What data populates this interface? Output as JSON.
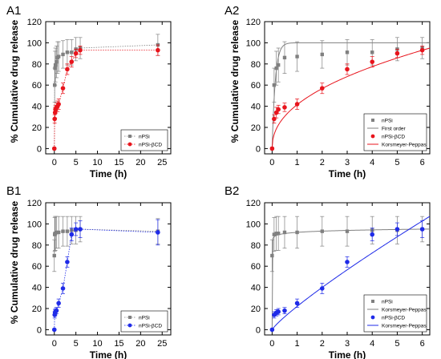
{
  "colors": {
    "gray": "#808080",
    "red": "#e8141c",
    "blue": "#1f2be8",
    "axis": "#000000"
  },
  "chart_data": [
    {
      "id": "A1",
      "label": "A1",
      "type": "scatter",
      "xlabel": "Time (h)",
      "ylabel": "% Cumulative drug release",
      "xlim": [
        -2,
        27
      ],
      "ylim": [
        -5,
        120
      ],
      "xticks": [
        0,
        5,
        10,
        15,
        20,
        25
      ],
      "yticks": [
        0,
        20,
        40,
        60,
        80,
        100,
        120
      ],
      "legend": {
        "placement": "bottom-right",
        "entries": [
          "nPSi",
          "nPSi-βCD"
        ]
      },
      "series": [
        {
          "name": "nPSi",
          "color": "gray",
          "marker": "square",
          "line": "dotted",
          "x": [
            0,
            0.08,
            0.17,
            0.25,
            0.5,
            0.75,
            1,
            2,
            3,
            4,
            5,
            6,
            24
          ],
          "y": [
            0,
            60,
            76,
            79,
            82,
            86,
            87,
            89,
            91,
            91,
            94,
            95,
            98
          ],
          "err": [
            0,
            16,
            16,
            16,
            15,
            15,
            14,
            13,
            12,
            12,
            11,
            10,
            10
          ]
        },
        {
          "name": "nPSi-βCD",
          "color": "red",
          "marker": "circle",
          "line": "dotted",
          "x": [
            0,
            0.08,
            0.17,
            0.25,
            0.5,
            0.75,
            1,
            2,
            3,
            4,
            5,
            6,
            24
          ],
          "y": [
            0,
            28,
            34,
            37,
            39,
            40,
            42,
            57,
            75,
            82,
            90,
            93,
            93
          ],
          "err": [
            0,
            4,
            5,
            4,
            4,
            5,
            5,
            5,
            5,
            5,
            4,
            4,
            5
          ]
        }
      ]
    },
    {
      "id": "A2",
      "label": "A2",
      "type": "scatter",
      "xlabel": "Time (h)",
      "ylabel": "% Cumulative drug release",
      "xlim": [
        -0.3,
        6.3
      ],
      "ylim": [
        -5,
        120
      ],
      "xticks": [
        0,
        1,
        2,
        3,
        4,
        5,
        6
      ],
      "yticks": [
        0,
        20,
        40,
        60,
        80,
        100,
        120
      ],
      "legend": {
        "placement": "bottom-right",
        "entries": [
          "nPSi",
          "First order",
          "nPSi-βCD",
          "Korsmeyer-Peppas"
        ]
      },
      "series": [
        {
          "name": "nPSi",
          "color": "gray",
          "marker": "square",
          "line": "none",
          "x": [
            0,
            0.08,
            0.17,
            0.25,
            0.5,
            1,
            2,
            3,
            4,
            5,
            6
          ],
          "y": [
            0,
            60,
            76,
            79,
            86,
            87,
            89,
            91,
            91,
            94,
            95
          ],
          "err": [
            0,
            16,
            16,
            16,
            15,
            14,
            13,
            12,
            12,
            11,
            10
          ]
        },
        {
          "name": "First order",
          "color": "gray",
          "marker": "none",
          "line": "solid",
          "fit": {
            "model": "first-order",
            "ymax": 100,
            "k": 8
          }
        },
        {
          "name": "nPSi-βCD",
          "color": "red",
          "marker": "circle",
          "line": "none",
          "x": [
            0,
            0.08,
            0.17,
            0.25,
            0.5,
            1,
            2,
            3,
            4,
            5,
            6
          ],
          "y": [
            0,
            28,
            34,
            37,
            39,
            42,
            57,
            75,
            82,
            90,
            93
          ],
          "err": [
            0,
            4,
            5,
            4,
            4,
            5,
            5,
            5,
            5,
            4,
            4
          ]
        },
        {
          "name": "Korsmeyer-Peppas",
          "color": "red",
          "marker": "none",
          "line": "solid",
          "fit": {
            "model": "korsmeyer-peppas",
            "k": 41.5,
            "n": 0.45
          }
        }
      ]
    },
    {
      "id": "B1",
      "label": "B1",
      "type": "scatter",
      "xlabel": "Time (h)",
      "ylabel": "% Cumulative drug release",
      "xlim": [
        -2,
        27
      ],
      "ylim": [
        -5,
        120
      ],
      "xticks": [
        0,
        5,
        10,
        15,
        20,
        25
      ],
      "yticks": [
        0,
        20,
        40,
        60,
        80,
        100,
        120
      ],
      "legend": {
        "placement": "bottom-right",
        "entries": [
          "nPSi",
          "nPSi-βCD"
        ]
      },
      "series": [
        {
          "name": "nPSi",
          "color": "gray",
          "marker": "square",
          "line": "dotted",
          "x": [
            0,
            0.08,
            0.17,
            0.25,
            0.5,
            1,
            2,
            3,
            4,
            5,
            6,
            24
          ],
          "y": [
            70,
            90,
            91,
            91,
            92,
            92,
            93,
            93,
            94,
            94,
            95,
            93
          ],
          "err": [
            15,
            16,
            16,
            16,
            15,
            15,
            14,
            14,
            13,
            13,
            12,
            12
          ]
        },
        {
          "name": "nPSi-βCD",
          "color": "blue",
          "marker": "circle",
          "line": "dotted",
          "x": [
            0,
            0.08,
            0.17,
            0.25,
            0.5,
            1,
            2,
            3,
            4,
            5,
            6,
            24
          ],
          "y": [
            0,
            14,
            16,
            17,
            18,
            25,
            39,
            64,
            90,
            95,
            95,
            92
          ],
          "err": [
            0,
            3,
            3,
            3,
            3,
            4,
            5,
            5,
            6,
            6,
            8,
            12
          ]
        }
      ]
    },
    {
      "id": "B2",
      "label": "B2",
      "type": "scatter",
      "xlabel": "Time (h)",
      "ylabel": "",
      "xlim": [
        -0.3,
        6.3
      ],
      "ylim": [
        -5,
        120
      ],
      "xticks": [
        0,
        1,
        2,
        3,
        4,
        5,
        6
      ],
      "yticks": [
        0,
        20,
        40,
        60,
        80,
        100,
        120
      ],
      "legend": {
        "placement": "bottom-right",
        "entries": [
          "nPSi",
          "Korsmeyer-Peppas",
          "nPSi-βCD",
          "Korsmeyer-Peppas"
        ]
      },
      "series": [
        {
          "name": "nPSi",
          "color": "gray",
          "marker": "square",
          "line": "none",
          "x": [
            0,
            0.08,
            0.17,
            0.25,
            0.5,
            1,
            2,
            3,
            4,
            5,
            6
          ],
          "y": [
            70,
            90,
            91,
            91,
            92,
            92,
            93,
            93,
            94,
            94,
            95
          ],
          "err": [
            15,
            16,
            16,
            16,
            15,
            15,
            14,
            14,
            13,
            13,
            12
          ]
        },
        {
          "name": "Korsmeyer-Peppas",
          "color": "gray",
          "marker": "none",
          "line": "solid",
          "fit": {
            "model": "korsmeyer-peppas",
            "k": 92,
            "n": 0.018
          }
        },
        {
          "name": "nPSi-βCD",
          "color": "blue",
          "marker": "circle",
          "line": "none",
          "x": [
            0,
            0.08,
            0.17,
            0.25,
            0.5,
            1,
            2,
            3,
            4,
            5,
            6
          ],
          "y": [
            0,
            14,
            16,
            17,
            18,
            25,
            39,
            64,
            90,
            95,
            95
          ],
          "err": [
            0,
            3,
            3,
            3,
            3,
            4,
            5,
            5,
            6,
            6,
            8
          ]
        },
        {
          "name": "Korsmeyer-Peppas",
          "color": "blue",
          "marker": "none",
          "line": "solid",
          "fit": {
            "model": "korsmeyer-peppas",
            "k": 22,
            "n": 0.86
          }
        }
      ]
    }
  ]
}
